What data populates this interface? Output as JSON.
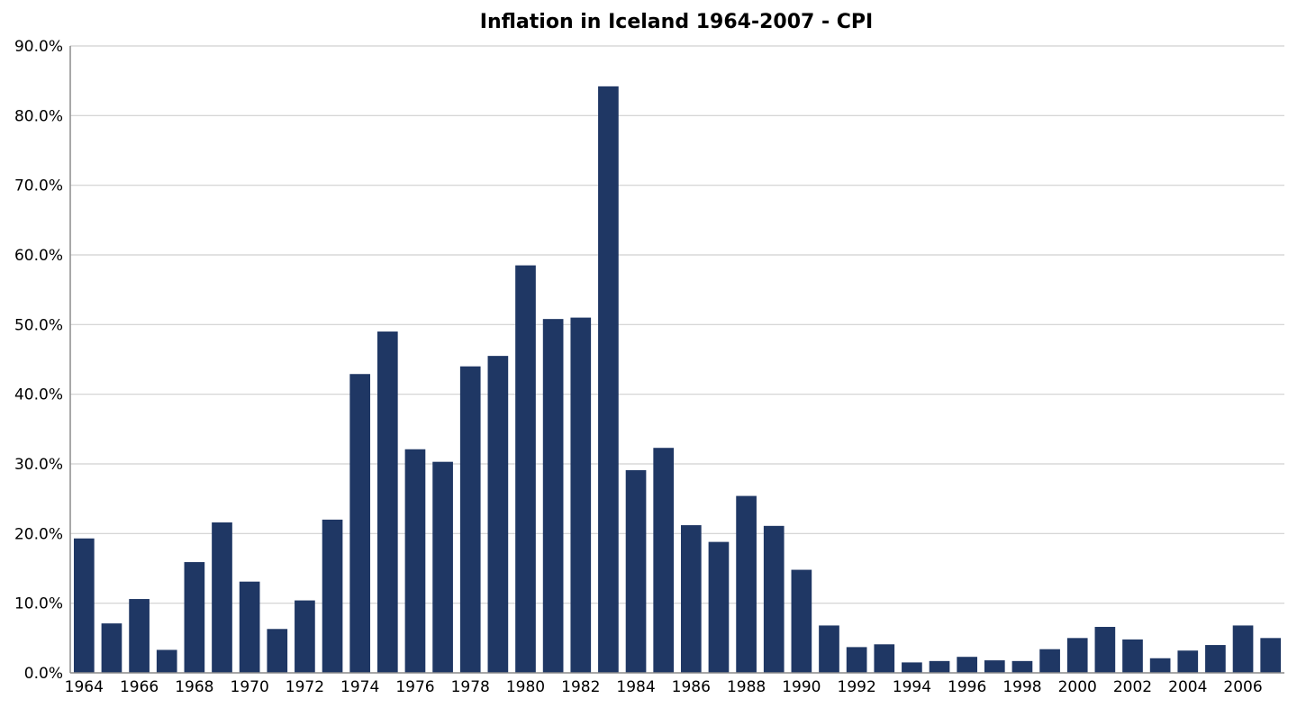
{
  "chart_data": {
    "type": "bar",
    "title": "Inflation in Iceland 1964-2007 - CPI",
    "xlabel": "",
    "ylabel": "",
    "ylim": [
      0,
      90
    ],
    "y_ticks": [
      0,
      10,
      20,
      30,
      40,
      50,
      60,
      70,
      80,
      90
    ],
    "y_tick_labels": [
      "0.0%",
      "10.0%",
      "20.0%",
      "30.0%",
      "40.0%",
      "50.0%",
      "60.0%",
      "70.0%",
      "80.0%",
      "90.0%"
    ],
    "x_tick_labels": [
      "1964",
      "1966",
      "1968",
      "1970",
      "1972",
      "1974",
      "1976",
      "1978",
      "1980",
      "1982",
      "1984",
      "1986",
      "1988",
      "1990",
      "1992",
      "1994",
      "1996",
      "1998",
      "2000",
      "2002",
      "2004",
      "2006"
    ],
    "grid": true,
    "legend": "none",
    "bar_color": "#1f3764",
    "grid_color": "#d0d0d0",
    "axis_color": "#8c8c8c",
    "categories": [
      "1964",
      "1965",
      "1966",
      "1967",
      "1968",
      "1969",
      "1970",
      "1971",
      "1972",
      "1973",
      "1974",
      "1975",
      "1976",
      "1977",
      "1978",
      "1979",
      "1980",
      "1981",
      "1982",
      "1983",
      "1984",
      "1985",
      "1986",
      "1987",
      "1988",
      "1989",
      "1990",
      "1991",
      "1992",
      "1993",
      "1994",
      "1995",
      "1996",
      "1997",
      "1998",
      "1999",
      "2000",
      "2001",
      "2002",
      "2003",
      "2004",
      "2005",
      "2006",
      "2007"
    ],
    "values": [
      19.3,
      7.1,
      10.6,
      3.3,
      15.9,
      21.6,
      13.1,
      6.3,
      10.4,
      22.0,
      42.9,
      49.0,
      32.1,
      30.3,
      44.0,
      45.5,
      58.5,
      50.8,
      51.0,
      84.2,
      29.1,
      32.3,
      21.2,
      18.8,
      25.4,
      21.1,
      14.8,
      6.8,
      3.7,
      4.1,
      1.5,
      1.7,
      2.3,
      1.8,
      1.7,
      3.4,
      5.0,
      6.6,
      4.8,
      2.1,
      3.2,
      4.0,
      6.8,
      5.0
    ]
  }
}
